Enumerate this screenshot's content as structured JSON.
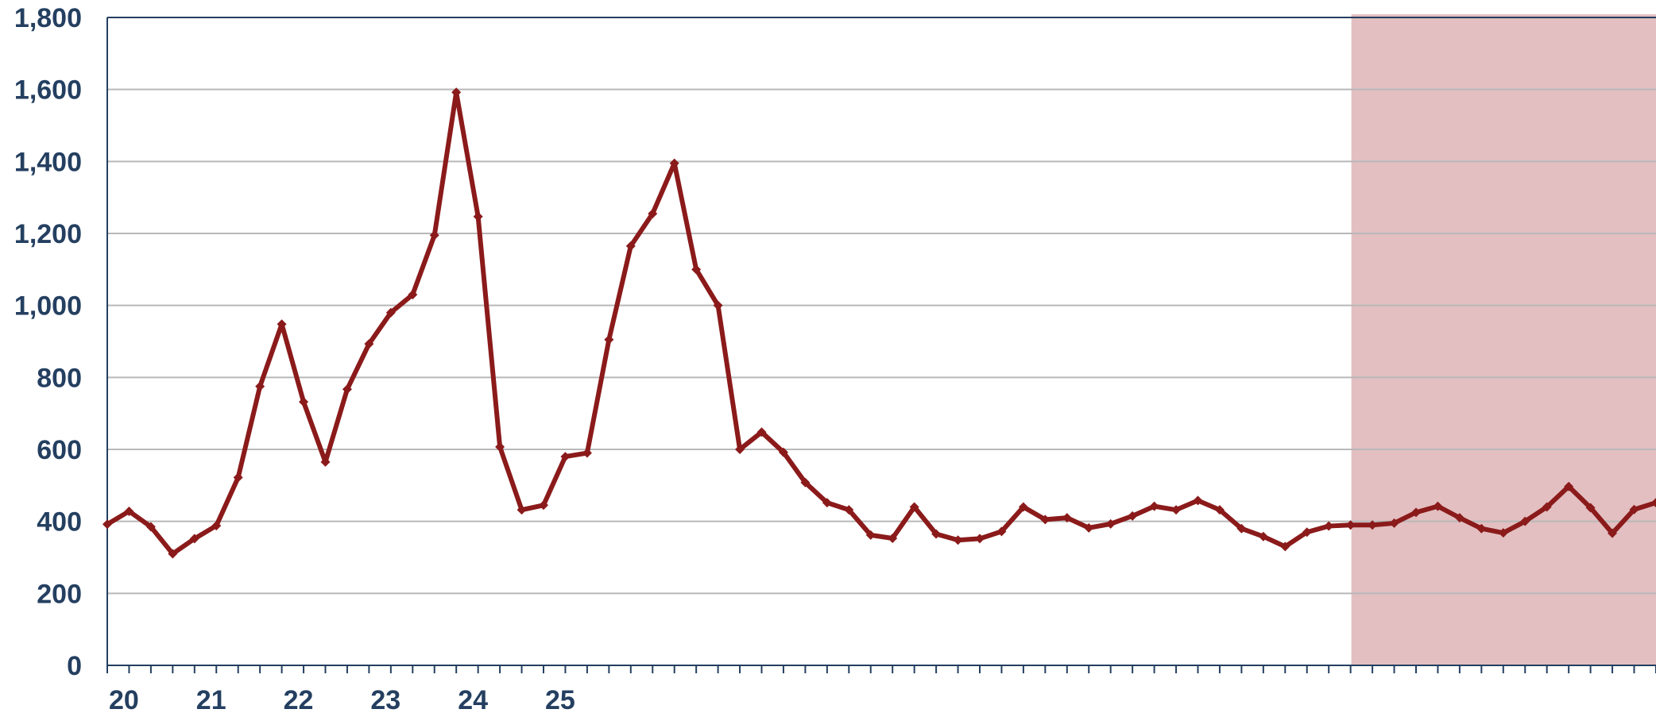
{
  "chart_data": {
    "type": "line",
    "title": "",
    "xlabel": "",
    "ylabel": "",
    "ylim": [
      0,
      1800
    ],
    "yticks": [
      "0",
      "200",
      "400",
      "600",
      "800",
      "1,000",
      "1,200",
      "1,400",
      "1,600",
      "1,800"
    ],
    "x_tick_labels": [
      "20",
      "21",
      "22",
      "23",
      "24",
      "25"
    ],
    "quarter_ticks_per_year": 4,
    "grid": true,
    "shaded_region": {
      "start_quarter_index": 57,
      "color": "#e3bfc1"
    },
    "series": [
      {
        "color": "#8b1a1a",
        "values": [
          392,
          428,
          385,
          310,
          352,
          388,
          522,
          775,
          948,
          732,
          565,
          767,
          893,
          980,
          1030,
          1195,
          1592,
          1247,
          607,
          432,
          445,
          580,
          590,
          905,
          1165,
          1255,
          1395,
          1100,
          1000,
          600,
          648,
          592,
          508,
          452,
          432,
          362,
          353,
          440,
          365,
          348,
          352,
          372,
          440,
          405,
          410,
          382,
          393,
          415,
          442,
          432,
          458,
          432,
          380,
          358,
          330,
          370,
          387,
          390,
          390,
          395,
          425,
          442,
          410,
          380,
          368,
          400,
          440,
          497,
          438,
          367,
          433,
          452
        ]
      }
    ]
  }
}
